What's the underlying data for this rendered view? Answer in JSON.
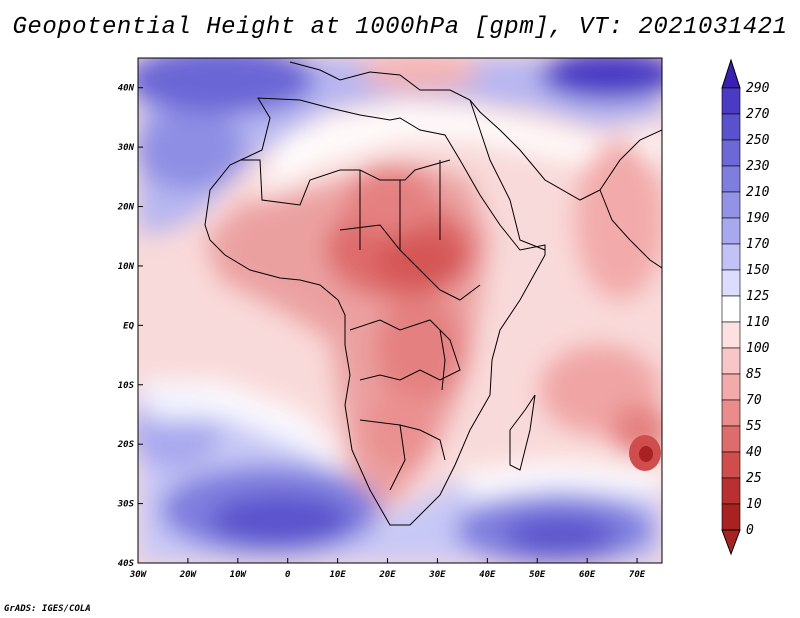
{
  "title": "Geopotential Height at 1000hPa [gpm], VT: 2021031421",
  "credit": "GrADS: IGES/COLA",
  "chart_data": {
    "type": "heatmap",
    "variable": "Geopotential Height at 1000hPa",
    "units": "gpm",
    "valid_time": "2021031421",
    "x_ticks": [
      "30W",
      "20W",
      "10W",
      "0",
      "10E",
      "20E",
      "30E",
      "40E",
      "50E",
      "60E",
      "70E"
    ],
    "y_ticks": [
      "40N",
      "30N",
      "20N",
      "10N",
      "EQ",
      "10S",
      "20S",
      "30S",
      "40S"
    ],
    "xlim": [
      -30,
      75
    ],
    "ylim": [
      -40,
      45
    ],
    "colorbar_levels": [
      290,
      270,
      250,
      230,
      210,
      190,
      170,
      150,
      125,
      110,
      100,
      85,
      70,
      55,
      40,
      25,
      10,
      0
    ],
    "colorbar_colors": [
      "#3a1fb4",
      "#4a3ac4",
      "#5a52cc",
      "#6c68d6",
      "#7f7ede",
      "#9393e6",
      "#a8a8ee",
      "#c2c2f6",
      "#dcdcfc",
      "#ffffff",
      "#fde0e0",
      "#f8c6c6",
      "#f2aaaa",
      "#ea8c8c",
      "#de6c6c",
      "#d04d4d",
      "#b8302f",
      "#a82222"
    ],
    "features": [
      {
        "name": "low-pressure-cell-mozambique-channel",
        "lon": 71,
        "lat": -21,
        "value": 0
      },
      {
        "name": "high-north-atlantic",
        "lon": -15,
        "lat": 42,
        "value": 270
      },
      {
        "name": "high-south-atlantic",
        "lon": 0,
        "lat": -34,
        "value": 250
      },
      {
        "name": "high-south-indian",
        "lon": 55,
        "lat": -37,
        "value": 250
      },
      {
        "name": "high-central-asia",
        "lon": 68,
        "lat": 44,
        "value": 270
      },
      {
        "name": "heat-low-sahel",
        "lon": 28,
        "lat": 14,
        "value": 40
      }
    ]
  }
}
